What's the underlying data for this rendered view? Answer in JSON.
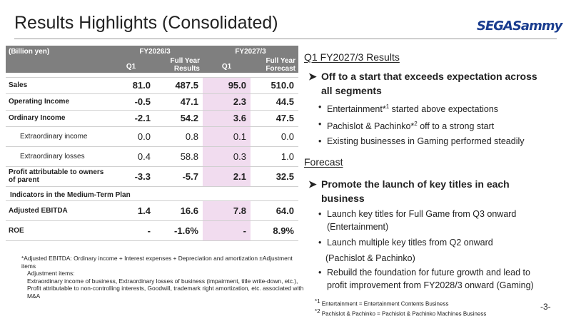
{
  "header": {
    "title": "Results Highlights (Consolidated)",
    "logo_text": "SEGASammy"
  },
  "table": {
    "unit": "(Billion yen)",
    "groups": [
      "FY2026/3",
      "FY2027/3"
    ],
    "cols": [
      "Q1",
      "Full Year Results",
      "Q1",
      "Full Year Forecast"
    ],
    "rows": [
      {
        "label": "Sales",
        "values": [
          "81.0",
          "487.5",
          "95.0",
          "510.0"
        ]
      },
      {
        "label": "Operating Income",
        "values": [
          "-0.5",
          "47.1",
          "2.3",
          "44.5"
        ]
      },
      {
        "label": "Ordinary Income",
        "values": [
          "-2.1",
          "54.2",
          "3.6",
          "47.5"
        ]
      },
      {
        "label": "Extraordinary income",
        "values": [
          "0.0",
          "0.8",
          "0.1",
          "0.0"
        ]
      },
      {
        "label": "Extraordinary losses",
        "values": [
          "0.4",
          "58.8",
          "0.3",
          "1.0"
        ]
      },
      {
        "label": "Profit attributable to owners of parent",
        "values": [
          "-3.3",
          "-5.7",
          "2.1",
          "32.5"
        ]
      }
    ],
    "section_label": "Indicators in the Medium-Term Plan",
    "kpi_rows": [
      {
        "label": "Adjusted EBITDA",
        "values": [
          "1.4",
          "16.6",
          "7.8",
          "64.0"
        ]
      },
      {
        "label": "ROE",
        "values": [
          "-",
          "-1.6%",
          "-",
          "8.9%"
        ]
      }
    ]
  },
  "footnote": {
    "line1": "*Adjusted EBITDA: Ordinary income + Interest expenses + Depreciation and amortization ±Adjustment items",
    "line2": "Adjustment items:",
    "line3": "Extraordinary income of business, Extraordinary losses of business (impairment, title write-down, etc.),",
    "line4": "Profit attributable to non-controlling interests, Goodwill, trademark right amortization, etc. associated with M&A"
  },
  "results": {
    "heading": "Q1 FY2027/3 Results",
    "main_line1": "Off to a start that exceeds expectation across",
    "main_line2": "all segments",
    "b1_pre": "Entertainment*",
    "b1_sup": "1",
    "b1_post": " started above expectations",
    "b2_pre": "Pachislot & Pachinko*",
    "b2_sup": "2",
    "b2_post": " off to a strong start",
    "b3": "Existing businesses in Gaming performed steadily"
  },
  "forecast": {
    "heading": "Forecast",
    "main_line1": "Promote the launch of key titles in each",
    "main_line2": "business",
    "b1_line1": "Launch key titles for Full Game from Q3 onward",
    "b1_line2": "(Entertainment)",
    "b2_line1": "Launch multiple key titles from Q2 onward",
    "b2_line2": "(Pachislot & Pachinko)",
    "b3_line1": "Rebuild the foundation for future growth and lead to",
    "b3_line2": "profit improvement from FY2028/3 onward (Gaming)"
  },
  "notes": {
    "n1_sup": "*1",
    "n1": " Entertainment = Entertainment Contents Business",
    "n2_sup": "*2",
    "n2": " Pachislot & Pachinko = Pachislot & Pachinko Machines Business"
  },
  "page_number": "-3-",
  "colors": {
    "header_bg": "#7f7f7f",
    "highlight": "#f1dcef",
    "logo": "#1a3d8f"
  }
}
